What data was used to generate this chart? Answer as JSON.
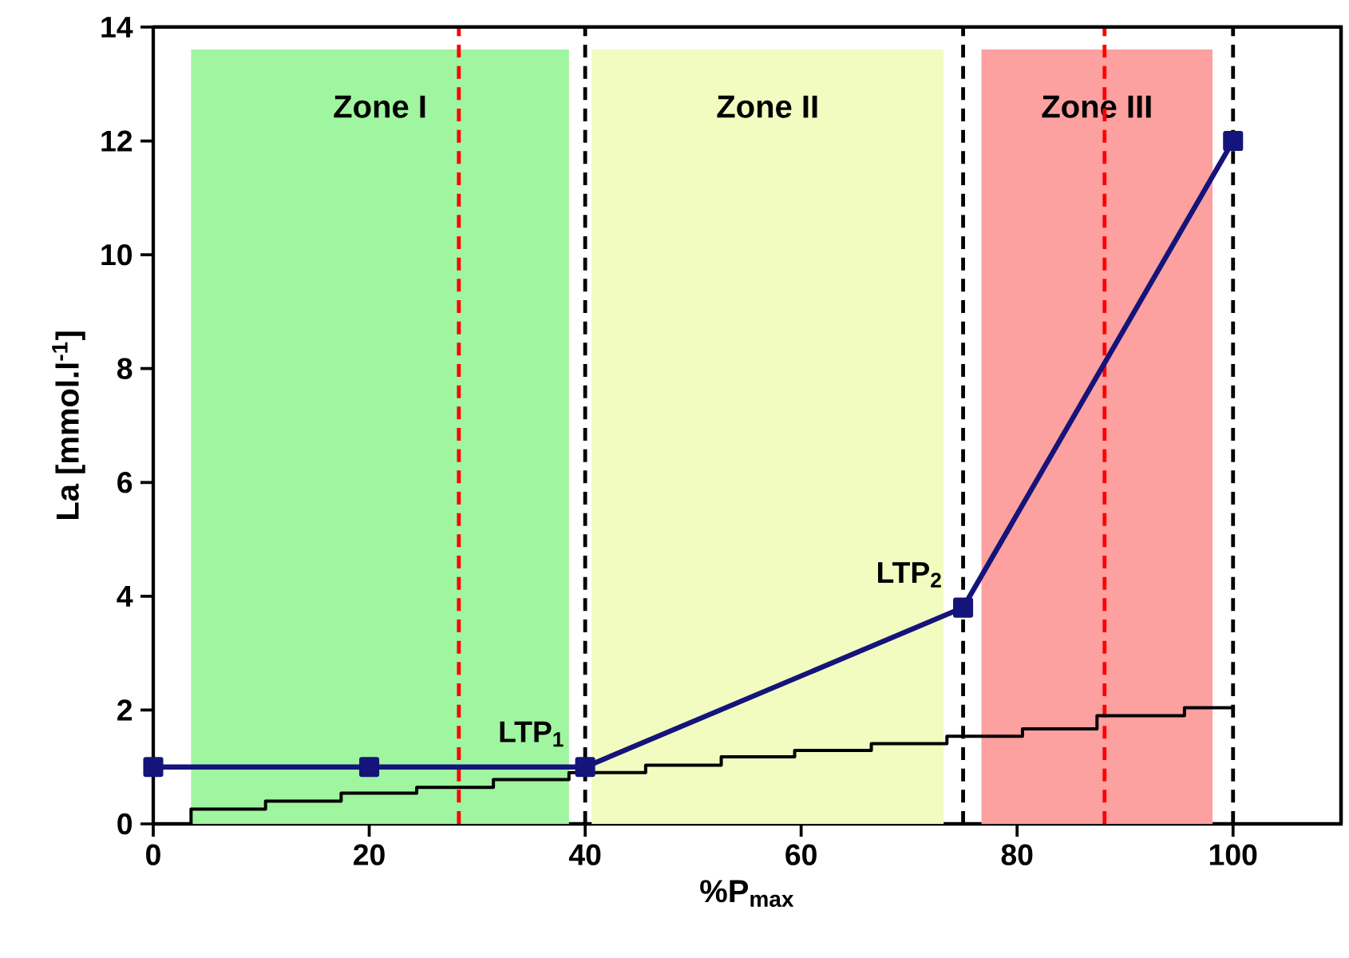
{
  "chart_data": {
    "type": "line",
    "xlabel": "%P$_{max}$",
    "ylabel": "La [mmol.l$^{-1}$]",
    "xlim": [
      0,
      110
    ],
    "ylim": [
      0,
      14
    ],
    "xticks": [
      0,
      20,
      40,
      60,
      80,
      100
    ],
    "yticks": [
      0,
      2,
      4,
      6,
      8,
      10,
      12,
      14
    ],
    "grid": false,
    "series": [
      {
        "color": "#14147a",
        "marker": "square",
        "line_style": "solid",
        "x": [
          0,
          20,
          40,
          75,
          100
        ],
        "values": [
          1,
          1,
          1,
          3.8,
          12
        ]
      },
      {
        "type": "step",
        "color": "#000000",
        "marker": "none",
        "line_style": "solid",
        "x": [
          3.5,
          3.5,
          10.4,
          17.4,
          24.4,
          31.5,
          38.5,
          45.6,
          52.6,
          59.4,
          66.5,
          73.5,
          80.5,
          87.4,
          95.5,
          100
        ],
        "values": [
          0,
          0.26,
          0.4,
          0.54,
          0.64,
          0.78,
          0.9,
          1.03,
          1.18,
          1.29,
          1.41,
          1.54,
          1.67,
          1.9,
          2.04,
          2.04
        ]
      }
    ],
    "bands": [
      {
        "axis": "x",
        "from": 3.5,
        "to": 38.5,
        "label": "Zone I",
        "color": "#a0f5a0"
      },
      {
        "axis": "x",
        "from": 40.6,
        "to": 73.2,
        "label": "Zone II",
        "color": "#f2fcc0"
      },
      {
        "axis": "x",
        "from": 76.7,
        "to": 98.1,
        "label": "Zone III",
        "color": "#fca0a0"
      }
    ],
    "ref_lines": [
      {
        "axis": "x",
        "value": 28.3,
        "color": "#ff0000",
        "line_style": "dashed"
      },
      {
        "axis": "x",
        "value": 40,
        "color": "#000000",
        "line_style": "dashed"
      },
      {
        "axis": "x",
        "value": 75,
        "color": "#000000",
        "line_style": "dashed"
      },
      {
        "axis": "x",
        "value": 88.1,
        "color": "#ff0000",
        "line_style": "dashed"
      },
      {
        "axis": "x",
        "value": 100,
        "color": "#000000",
        "line_style": "dashed"
      }
    ],
    "annotations": [
      {
        "text": "LTP$_{1}$",
        "x": 40,
        "y": 1
      },
      {
        "text": "LTP$_{2}$",
        "x": 75,
        "y": 3.8
      }
    ]
  }
}
